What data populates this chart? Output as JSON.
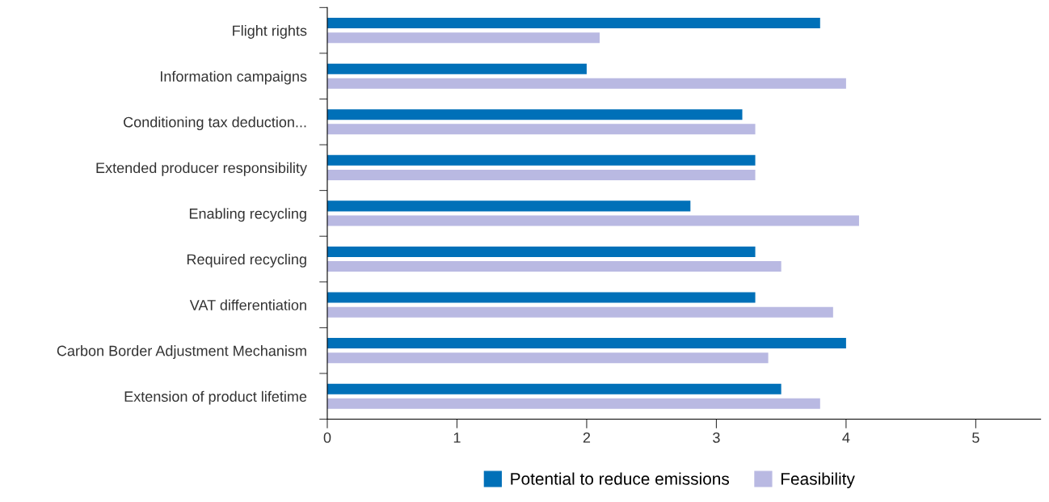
{
  "chart_data": {
    "type": "bar",
    "orientation": "horizontal",
    "categories": [
      "Flight rights",
      "Information campaigns",
      "Conditioning tax deduction...",
      "Extended producer responsibility",
      "Enabling recycling",
      "Required recycling",
      "VAT differentiation",
      "Carbon Border Adjustment Mechanism",
      "Extension of product lifetime"
    ],
    "series": [
      {
        "name": "Potential to reduce emissions",
        "color": "#0070b8",
        "values": [
          3.8,
          2.0,
          3.2,
          3.3,
          2.8,
          3.3,
          3.3,
          4.0,
          3.5
        ]
      },
      {
        "name": "Feasibility",
        "color": "#b9b9e2",
        "values": [
          2.1,
          4.0,
          3.3,
          3.3,
          4.1,
          3.5,
          3.9,
          3.4,
          3.8
        ]
      }
    ],
    "xlim": [
      0,
      5.5
    ],
    "xticks": [
      0,
      1,
      2,
      3,
      4,
      5
    ],
    "grid": false,
    "legend": "bottom"
  }
}
